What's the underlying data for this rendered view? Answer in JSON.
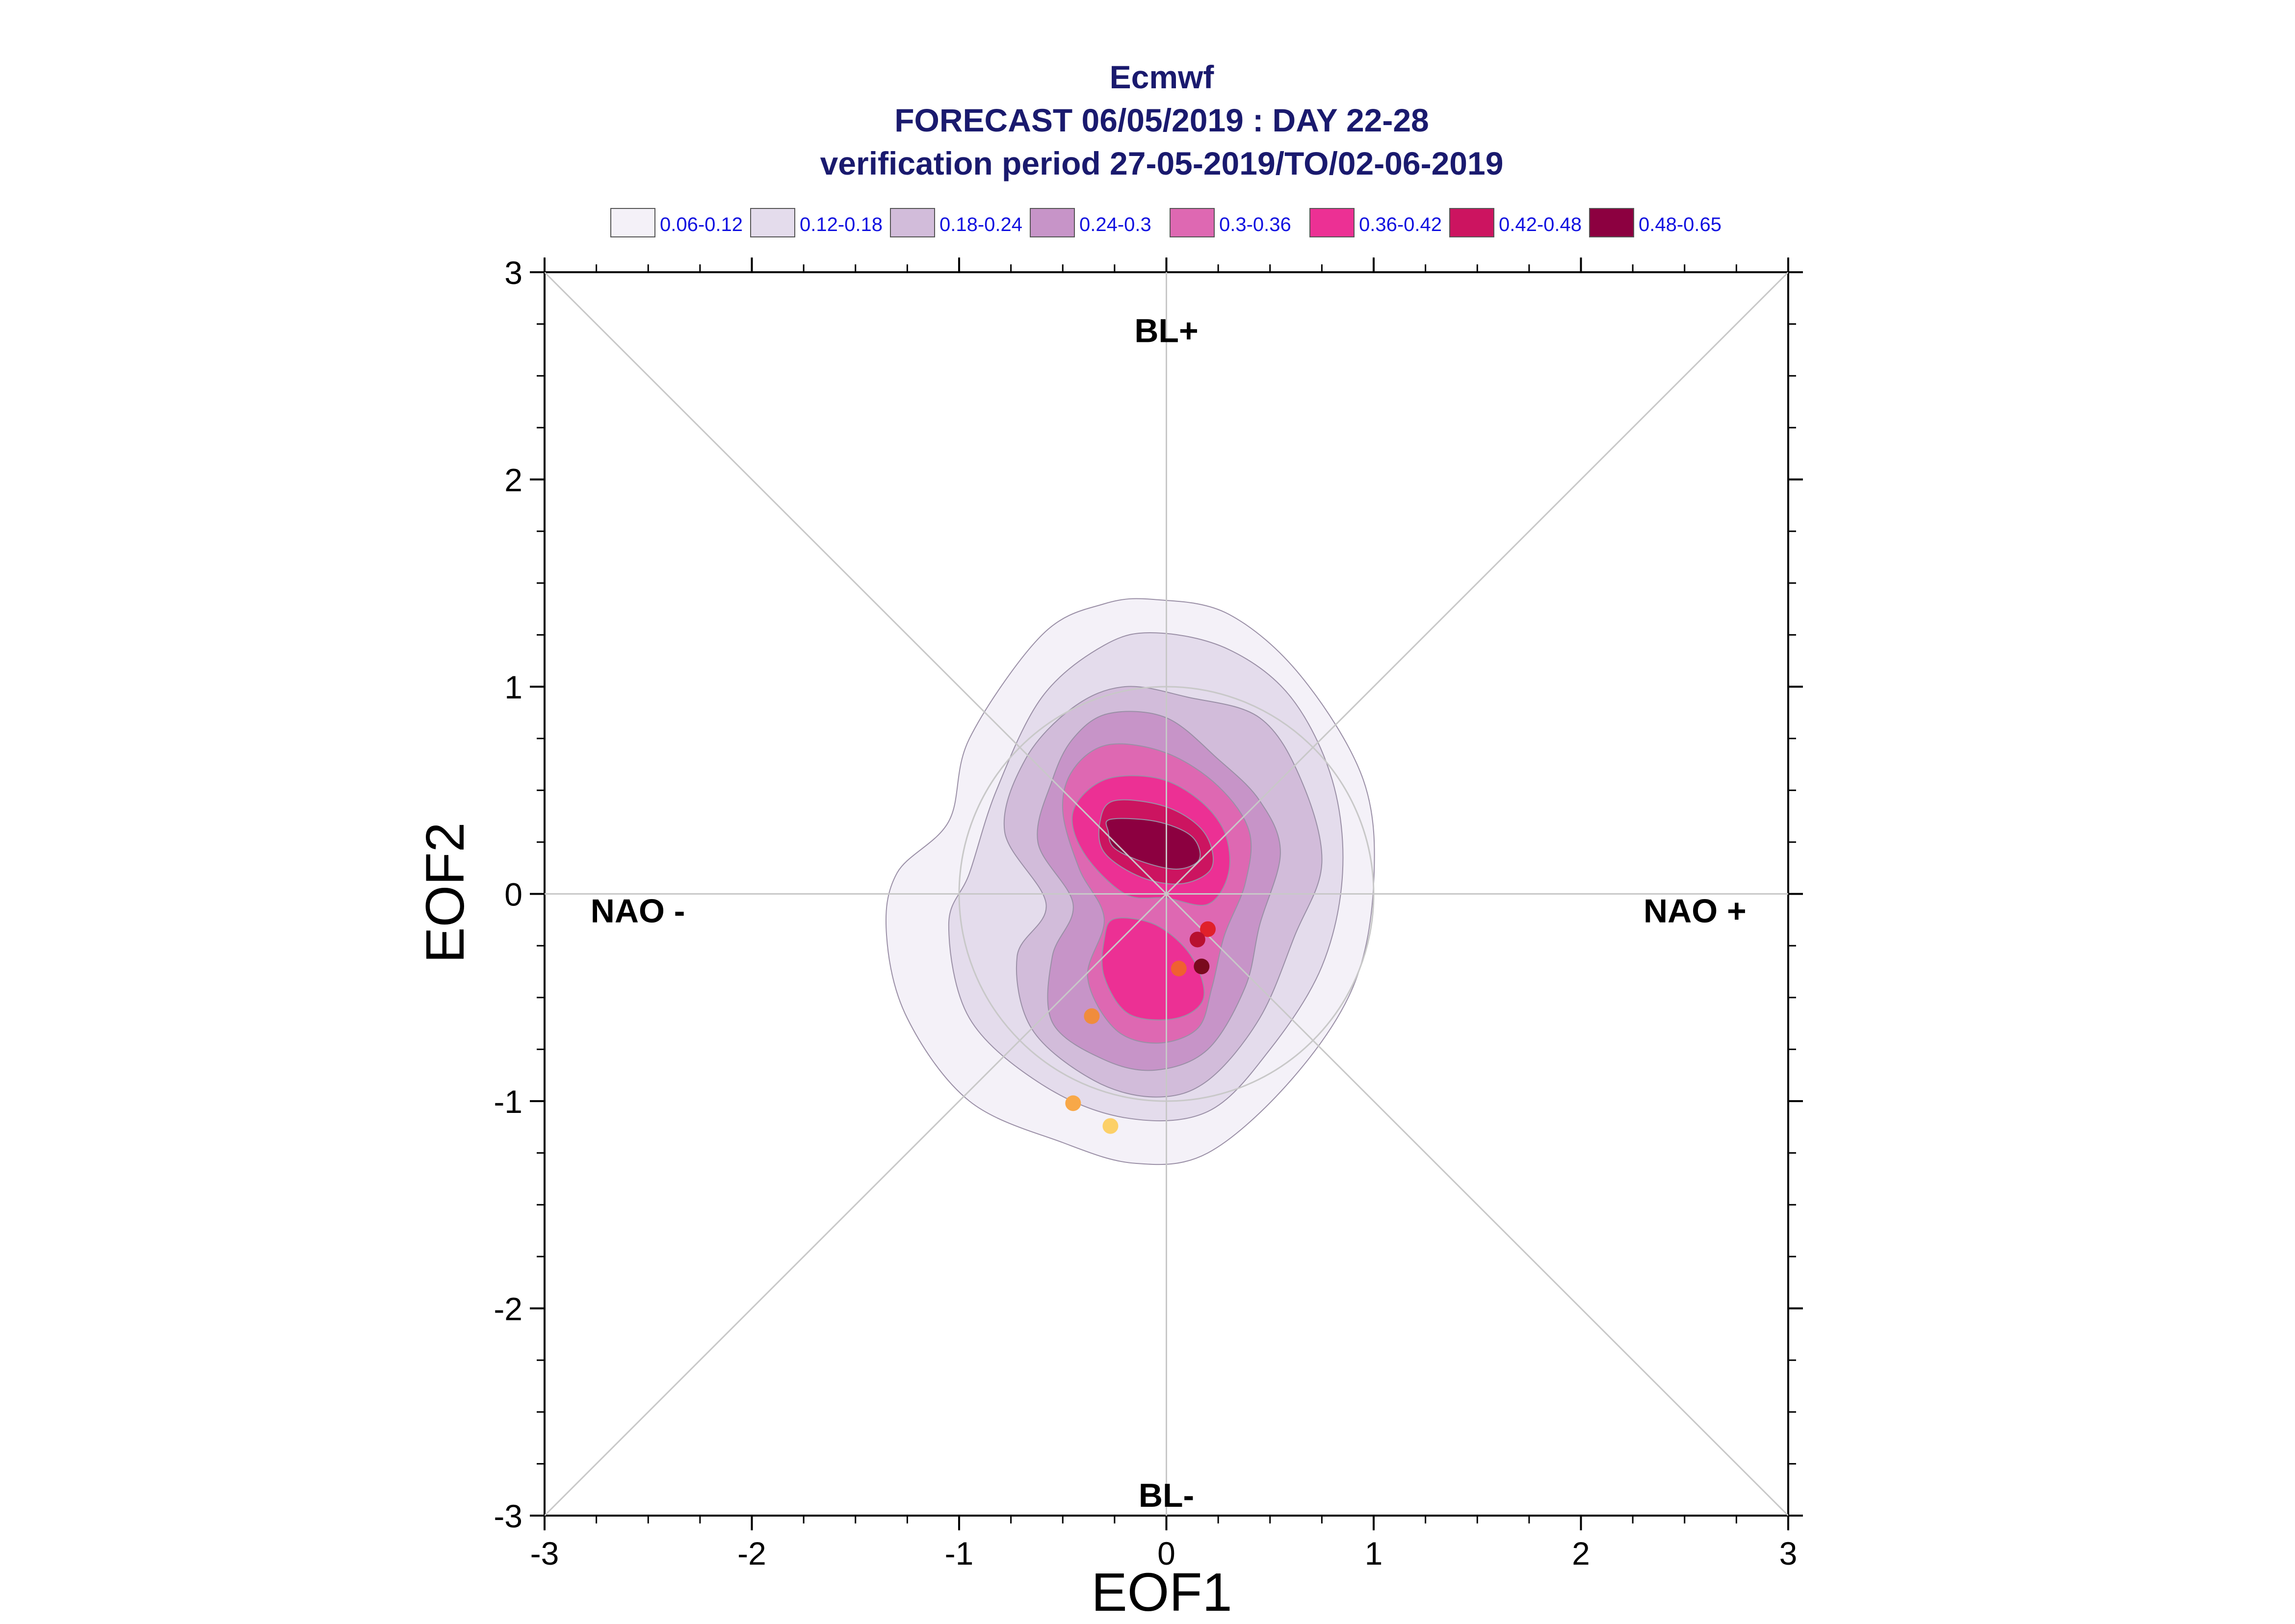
{
  "chart_data": {
    "type": "contour-scatter",
    "title_lines": [
      "Ecmwf",
      "FORECAST 06/05/2019 : DAY 22-28",
      "verification period 27-05-2019/TO/02-06-2019"
    ],
    "xlabel": "EOF1",
    "ylabel": "EOF2",
    "xlim": [
      -3,
      3
    ],
    "ylim": [
      -3,
      3
    ],
    "xticks": [
      -3,
      -2,
      -1,
      0,
      1,
      2,
      3
    ],
    "yticks": [
      -3,
      -2,
      -1,
      0,
      1,
      2,
      3
    ],
    "grid": "crosshair and diagonals",
    "unit_circle_radius": 1,
    "regime_labels": [
      {
        "text": "BL+",
        "x": 0,
        "y": 2.72
      },
      {
        "text": "BL-",
        "x": 0,
        "y": -2.9
      },
      {
        "text": "NAO -",
        "x": -2.55,
        "y": -0.08
      },
      {
        "text": "NAO +",
        "x": 2.55,
        "y": -0.08
      }
    ],
    "legend": [
      {
        "label": "0.06-0.12",
        "color": "#f4f1f8"
      },
      {
        "label": "0.12-0.18",
        "color": "#e4dcec"
      },
      {
        "label": "0.18-0.24",
        "color": "#d2bcda"
      },
      {
        "label": "0.24-0.3",
        "color": "#c794c8"
      },
      {
        "label": "0.3-0.36",
        "color": "#de68b2"
      },
      {
        "label": "0.36-0.42",
        "color": "#ec3094"
      },
      {
        "label": "0.42-0.48",
        "color": "#cc1460"
      },
      {
        "label": "0.48-0.65",
        "color": "#8c0040"
      }
    ],
    "density_levels": [
      {
        "level": "0.06-0.12",
        "color": "#f4f1f8",
        "polygons": [
          [
            [
              -0.05,
              1.42
            ],
            [
              0.3,
              1.35
            ],
            [
              0.65,
              1.05
            ],
            [
              0.95,
              0.55
            ],
            [
              1.0,
              0.05
            ],
            [
              0.9,
              -0.45
            ],
            [
              0.6,
              -0.9
            ],
            [
              0.2,
              -1.25
            ],
            [
              -0.15,
              -1.3
            ],
            [
              -0.5,
              -1.2
            ],
            [
              -0.95,
              -1.0
            ],
            [
              -1.25,
              -0.6
            ],
            [
              -1.35,
              -0.2
            ],
            [
              -1.3,
              0.1
            ],
            [
              -1.05,
              0.35
            ],
            [
              -0.95,
              0.75
            ],
            [
              -0.6,
              1.25
            ],
            [
              -0.3,
              1.4
            ]
          ]
        ]
      },
      {
        "level": "0.12-0.18",
        "color": "#e4dcec",
        "polygons": [
          [
            [
              -0.05,
              1.26
            ],
            [
              0.3,
              1.18
            ],
            [
              0.6,
              0.95
            ],
            [
              0.8,
              0.55
            ],
            [
              0.85,
              0.1
            ],
            [
              0.75,
              -0.35
            ],
            [
              0.5,
              -0.75
            ],
            [
              0.2,
              -1.05
            ],
            [
              -0.2,
              -1.08
            ],
            [
              -0.6,
              -0.92
            ],
            [
              -0.95,
              -0.6
            ],
            [
              -1.05,
              -0.15
            ],
            [
              -0.95,
              0.1
            ],
            [
              -0.82,
              0.5
            ],
            [
              -0.6,
              0.95
            ],
            [
              -0.3,
              1.2
            ]
          ]
        ]
      },
      {
        "level": "0.18-0.24",
        "color": "#d2bcda",
        "polygons": [
          [
            [
              -0.2,
              1.0
            ],
            [
              0.1,
              0.95
            ],
            [
              0.45,
              0.85
            ],
            [
              0.65,
              0.55
            ],
            [
              0.75,
              0.15
            ],
            [
              0.62,
              -0.2
            ],
            [
              0.45,
              -0.6
            ],
            [
              0.2,
              -0.9
            ],
            [
              -0.05,
              -0.98
            ],
            [
              -0.35,
              -0.9
            ],
            [
              -0.65,
              -0.65
            ],
            [
              -0.72,
              -0.3
            ],
            [
              -0.58,
              -0.05
            ],
            [
              -0.78,
              0.3
            ],
            [
              -0.68,
              0.65
            ],
            [
              -0.45,
              0.9
            ]
          ]
        ]
      },
      {
        "level": "0.24-0.3",
        "color": "#c794c8",
        "polygons": [
          [
            [
              -0.28,
              0.87
            ],
            [
              0.0,
              0.85
            ],
            [
              0.25,
              0.65
            ],
            [
              0.45,
              0.45
            ],
            [
              0.55,
              0.2
            ],
            [
              0.45,
              -0.15
            ],
            [
              0.38,
              -0.45
            ],
            [
              0.2,
              -0.75
            ],
            [
              -0.05,
              -0.85
            ],
            [
              -0.3,
              -0.8
            ],
            [
              -0.55,
              -0.62
            ],
            [
              -0.55,
              -0.3
            ],
            [
              -0.45,
              -0.05
            ],
            [
              -0.62,
              0.25
            ],
            [
              -0.55,
              0.55
            ],
            [
              -0.45,
              0.75
            ]
          ]
        ]
      },
      {
        "level": "0.3-0.36",
        "color": "#de68b2",
        "polygons": [
          [
            [
              -0.28,
              0.72
            ],
            [
              0.0,
              0.68
            ],
            [
              0.25,
              0.52
            ],
            [
              0.4,
              0.3
            ],
            [
              0.38,
              0.05
            ],
            [
              0.28,
              -0.2
            ],
            [
              0.22,
              -0.45
            ],
            [
              0.15,
              -0.65
            ],
            [
              -0.05,
              -0.72
            ],
            [
              -0.25,
              -0.65
            ],
            [
              -0.38,
              -0.4
            ],
            [
              -0.3,
              -0.12
            ],
            [
              -0.42,
              0.12
            ],
            [
              -0.5,
              0.4
            ],
            [
              -0.45,
              0.6
            ]
          ]
        ]
      },
      {
        "level": "0.36-0.42",
        "color": "#ec3094",
        "polygons": [
          [
            [
              -0.3,
              0.55
            ],
            [
              -0.05,
              0.56
            ],
            [
              0.15,
              0.46
            ],
            [
              0.28,
              0.3
            ],
            [
              0.3,
              0.1
            ],
            [
              0.2,
              -0.05
            ],
            [
              0.0,
              -0.02
            ],
            [
              -0.2,
              0.0
            ],
            [
              -0.4,
              0.2
            ],
            [
              -0.45,
              0.4
            ]
          ],
          [
            [
              -0.25,
              -0.12
            ],
            [
              -0.05,
              -0.15
            ],
            [
              0.12,
              -0.3
            ],
            [
              0.18,
              -0.5
            ],
            [
              0.05,
              -0.6
            ],
            [
              -0.18,
              -0.58
            ],
            [
              -0.3,
              -0.4
            ],
            [
              -0.3,
              -0.22
            ]
          ]
        ]
      },
      {
        "level": "0.42-0.48",
        "color": "#cc1460",
        "polygons": [
          [
            [
              -0.25,
              0.45
            ],
            [
              0.0,
              0.42
            ],
            [
              0.18,
              0.3
            ],
            [
              0.22,
              0.13
            ],
            [
              0.08,
              0.05
            ],
            [
              -0.12,
              0.08
            ],
            [
              -0.3,
              0.2
            ],
            [
              -0.32,
              0.35
            ]
          ]
        ]
      },
      {
        "level": "0.48-0.65",
        "color": "#8c0040",
        "polygons": [
          [
            [
              -0.27,
              0.36
            ],
            [
              -0.05,
              0.35
            ],
            [
              0.12,
              0.28
            ],
            [
              0.16,
              0.17
            ],
            [
              0.06,
              0.12
            ],
            [
              -0.1,
              0.15
            ],
            [
              -0.25,
              0.22
            ],
            [
              -0.28,
              0.3
            ]
          ]
        ]
      }
    ],
    "points": [
      {
        "x": 0.2,
        "y": -0.17,
        "color": "#e0202a"
      },
      {
        "x": 0.15,
        "y": -0.22,
        "color": "#b81030"
      },
      {
        "x": 0.17,
        "y": -0.35,
        "color": "#7a0a1e"
      },
      {
        "x": 0.06,
        "y": -0.36,
        "color": "#f06030"
      },
      {
        "x": -0.36,
        "y": -0.59,
        "color": "#f08c3c"
      },
      {
        "x": -0.45,
        "y": -1.01,
        "color": "#f8a848"
      },
      {
        "x": -0.27,
        "y": -1.12,
        "color": "#fcd068"
      }
    ]
  }
}
